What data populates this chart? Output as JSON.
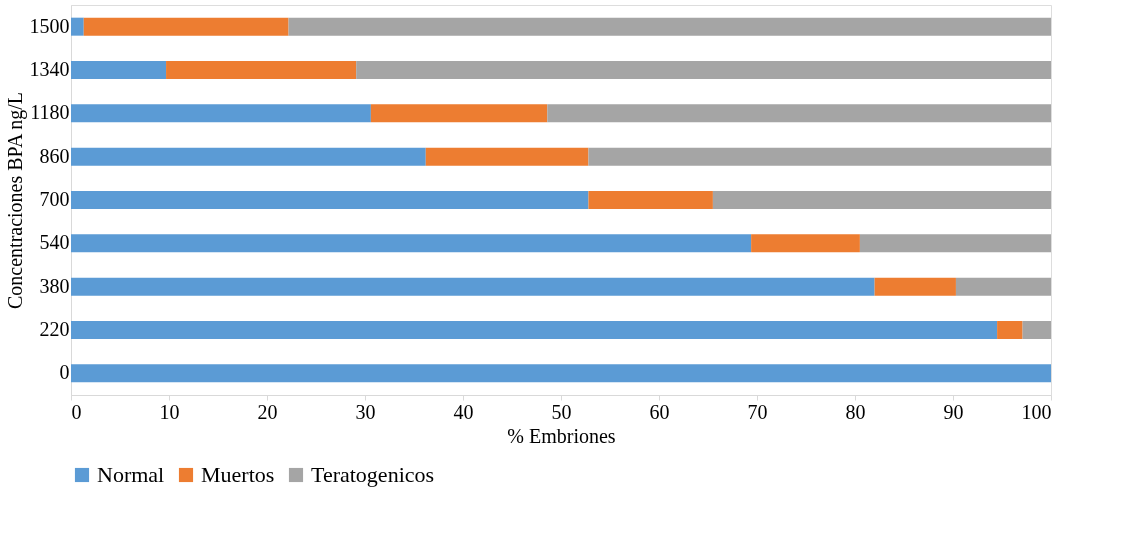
{
  "chart_data": {
    "type": "bar",
    "orientation": "horizontal",
    "stacked": true,
    "xlabel": "% Embriones",
    "ylabel": "Concentraciones BPA ng/L",
    "categories": [
      "1500",
      "1340",
      "1180",
      "860",
      "700",
      "540",
      "380",
      "220",
      "0"
    ],
    "series": [
      {
        "name": "Normal",
        "color": "#5b9bd5",
        "values": [
          1.3,
          9.7,
          30.6,
          36.2,
          52.8,
          69.4,
          82.0,
          94.5,
          100
        ]
      },
      {
        "name": "Muertos",
        "color": "#ed7d31",
        "values": [
          20.9,
          19.4,
          18.0,
          16.6,
          12.7,
          11.1,
          8.3,
          2.6,
          0
        ]
      },
      {
        "name": "Teratogenicos",
        "color": "#a5a5a5",
        "values": [
          77.8,
          70.9,
          51.4,
          47.2,
          34.5,
          19.5,
          9.7,
          2.9,
          0
        ]
      }
    ],
    "xlim": [
      0,
      100
    ],
    "xticks": [
      0,
      10,
      20,
      30,
      40,
      50,
      60,
      70,
      80,
      90,
      100
    ],
    "grid": false,
    "legend": "bottom"
  }
}
